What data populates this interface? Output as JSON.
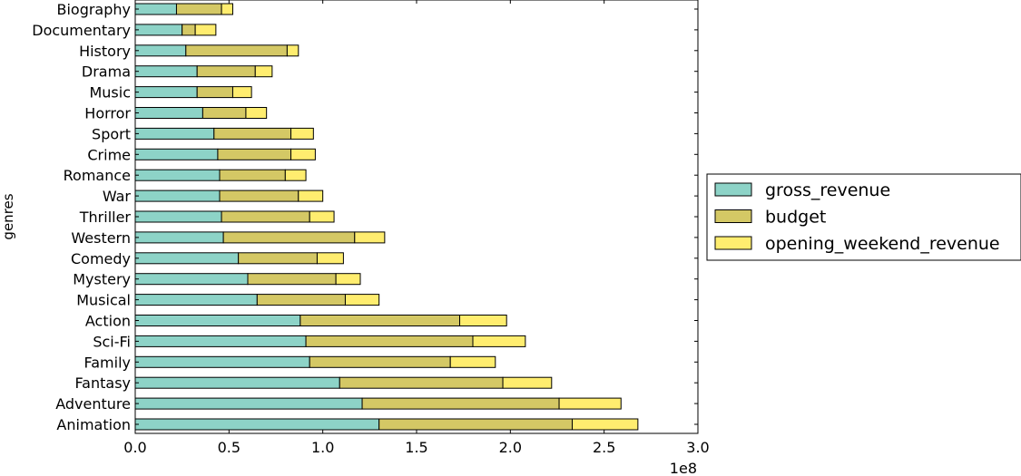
{
  "chart_data": {
    "type": "bar",
    "orientation": "horizontal",
    "stacked": true,
    "title": "",
    "xlabel": "",
    "ylabel": "genres",
    "xlim": [
      0,
      3.0
    ],
    "x_scale_multiplier_label": "1e8",
    "x_ticks": [
      "0.0",
      "0.5",
      "1.0",
      "1.5",
      "2.0",
      "2.5",
      "3.0"
    ],
    "grid": false,
    "legend_position": "right",
    "categories": [
      "Animation",
      "Adventure",
      "Fantasy",
      "Family",
      "Sci-Fi",
      "Action",
      "Musical",
      "Mystery",
      "Comedy",
      "Western",
      "Thriller",
      "War",
      "Romance",
      "Crime",
      "Sport",
      "Horror",
      "Music",
      "Drama",
      "History",
      "Documentary",
      "Biography"
    ],
    "series": [
      {
        "name": "gross_revenue",
        "color": "#8dd3c7",
        "values": [
          1.3,
          1.21,
          1.09,
          0.93,
          0.91,
          0.88,
          0.65,
          0.6,
          0.55,
          0.47,
          0.46,
          0.45,
          0.45,
          0.44,
          0.42,
          0.36,
          0.33,
          0.33,
          0.27,
          0.25,
          0.22
        ]
      },
      {
        "name": "budget",
        "color": "#d4c865",
        "values": [
          1.03,
          1.05,
          0.87,
          0.75,
          0.89,
          0.85,
          0.47,
          0.47,
          0.42,
          0.7,
          0.47,
          0.42,
          0.35,
          0.39,
          0.41,
          0.23,
          0.19,
          0.31,
          0.54,
          0.07,
          0.24
        ]
      },
      {
        "name": "opening_weekend_revenue",
        "color": "#ffed6f",
        "values": [
          0.35,
          0.33,
          0.26,
          0.24,
          0.28,
          0.25,
          0.18,
          0.13,
          0.14,
          0.16,
          0.13,
          0.13,
          0.11,
          0.13,
          0.12,
          0.11,
          0.1,
          0.09,
          0.06,
          0.11,
          0.06
        ]
      }
    ]
  }
}
